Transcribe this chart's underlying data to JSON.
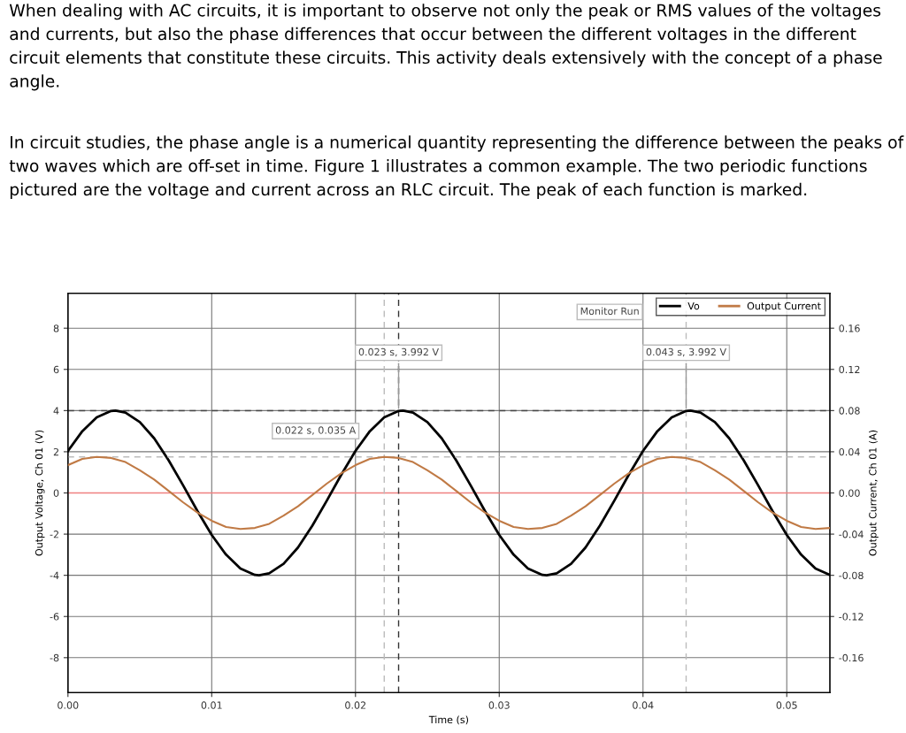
{
  "chart_data": {
    "type": "line",
    "title": "When dealing with AC circuits, it is important to observe not only the peak or RMS values of the voltages and currents, but also the phase differences that occur between the different voltages in the different circuit elements that constitute these circuits. This activity deals extensively with the concept of a phase angle.",
    "subtitle": "In circuit studies, the phase angle is a numerical quantity representing the difference between the peaks of two waves which are off-set in time. Figure 1 illustrates a common example. The two periodic functions pictured are the voltage and current across an RLC circuit. The peak of each function is marked.",
    "xlabel": "Time (s)",
    "ylabel": "Output Voltage, Ch 01 (V)",
    "y2label": "Output Current, Ch 01 (A)",
    "x": [
      0,
      0.001,
      0.002,
      0.003,
      0.0033,
      0.004,
      0.005,
      0.006,
      0.007,
      0.008,
      0.009,
      0.01,
      0.011,
      0.012,
      0.013,
      0.0133,
      0.014,
      0.015,
      0.016,
      0.017,
      0.018,
      0.019,
      0.02,
      0.021,
      0.022,
      0.023,
      0.0233,
      0.024,
      0.025,
      0.026,
      0.027,
      0.028,
      0.029,
      0.03,
      0.031,
      0.032,
      0.033,
      0.0333,
      0.034,
      0.035,
      0.036,
      0.037,
      0.038,
      0.039,
      0.04,
      0.041,
      0.042,
      0.043,
      0.0433,
      0.044,
      0.045,
      0.046,
      0.047,
      0.048,
      0.049,
      0.05,
      0.051,
      0.052,
      0.053
    ],
    "series": [
      {
        "name": "Vo",
        "color": "#000000",
        "values": [
          2.04,
          3.0,
          3.67,
          3.98,
          4.0,
          3.9,
          3.44,
          2.65,
          1.59,
          0.38,
          -0.87,
          -2.04,
          -3.0,
          -3.67,
          -3.98,
          -4.0,
          -3.9,
          -3.44,
          -2.65,
          -1.59,
          -0.38,
          0.87,
          2.04,
          3.0,
          3.67,
          3.98,
          4.0,
          3.9,
          3.44,
          2.65,
          1.59,
          0.38,
          -0.87,
          -2.04,
          -3.0,
          -3.67,
          -3.98,
          -4.0,
          -3.9,
          -3.44,
          -2.65,
          -1.59,
          -0.38,
          0.87,
          2.04,
          3.0,
          3.67,
          3.98,
          4.0,
          3.9,
          3.44,
          2.65,
          1.59,
          0.38,
          -0.87,
          -2.04,
          -3.0,
          -3.67,
          -3.98
        ]
      },
      {
        "name": "Output Current",
        "color": "#c07a45",
        "axis": "y2",
        "x": [
          0,
          0.001,
          0.002,
          0.003,
          0.004,
          0.005,
          0.006,
          0.007,
          0.008,
          0.009,
          0.01,
          0.011,
          0.012,
          0.013,
          0.014,
          0.015,
          0.016,
          0.017,
          0.018,
          0.019,
          0.02,
          0.021,
          0.022,
          0.023,
          0.024,
          0.025,
          0.026,
          0.027,
          0.028,
          0.029,
          0.03,
          0.031,
          0.032,
          0.033,
          0.034,
          0.035,
          0.036,
          0.037,
          0.038,
          0.039,
          0.04,
          0.041,
          0.042,
          0.043,
          0.044,
          0.045,
          0.046,
          0.047,
          0.048,
          0.049,
          0.05,
          0.051,
          0.052,
          0.053
        ],
        "values": [
          0.027,
          0.033,
          0.035,
          0.034,
          0.03,
          0.022,
          0.013,
          0.002,
          -0.009,
          -0.019,
          -0.027,
          -0.033,
          -0.035,
          -0.034,
          -0.03,
          -0.022,
          -0.013,
          -0.002,
          0.009,
          0.019,
          0.027,
          0.033,
          0.035,
          0.034,
          0.03,
          0.022,
          0.013,
          0.002,
          -0.009,
          -0.019,
          -0.027,
          -0.033,
          -0.035,
          -0.034,
          -0.03,
          -0.022,
          -0.013,
          -0.002,
          0.009,
          0.019,
          0.027,
          0.033,
          0.035,
          0.034,
          0.03,
          0.022,
          0.013,
          0.002,
          -0.009,
          -0.019,
          -0.027,
          -0.033,
          -0.035,
          -0.034
        ]
      }
    ],
    "xlim": [
      0,
      0.053
    ],
    "xticks": [
      {
        "value": 0,
        "label": "0.00"
      },
      0.01,
      0.02,
      0.03,
      0.04,
      0.05
    ],
    "ylim": [
      -9.7,
      9.7
    ],
    "yticks": [
      -8,
      -6,
      -4,
      -2,
      0,
      2,
      4,
      6,
      8
    ],
    "y2lim": [
      -0.194,
      0.194
    ],
    "y2ticks": [
      -0.16,
      -0.12,
      -0.08,
      -0.04,
      {
        "value": 0,
        "label": "0.00"
      },
      0.04,
      0.08,
      0.12,
      0.16
    ],
    "ref_lines": [
      {
        "axis": "y",
        "value": 0,
        "color": "#f08080",
        "line_style": "solid"
      },
      {
        "axis": "y",
        "value": 3.992,
        "color": "#444444",
        "line_style": "dashed"
      },
      {
        "axis": "y2",
        "value": 0.035,
        "color": "#bbbbbb",
        "line_style": "dashed"
      },
      {
        "axis": "x",
        "value": 0.023,
        "color": "#333333",
        "line_style": "dashed"
      },
      {
        "axis": "x",
        "value": 0.022,
        "color": "#bbbbbb",
        "line_style": "dashed"
      },
      {
        "axis": "x",
        "value": 0.043,
        "color": "#bbbbbb",
        "line_style": "dashed"
      }
    ],
    "annotations": [
      {
        "text": "0.023 s, 3.992 V",
        "x": 0.023,
        "y": 3.992
      },
      "0.022 s, 0.035 A",
      {
        "text": "0.043 s, 3.992 V",
        "x": 0.043,
        "y": 3.992
      },
      "Monitor Run"
    ],
    "grid": true,
    "legend": "top right",
    "marker": "none",
    "line_style": "solid"
  }
}
